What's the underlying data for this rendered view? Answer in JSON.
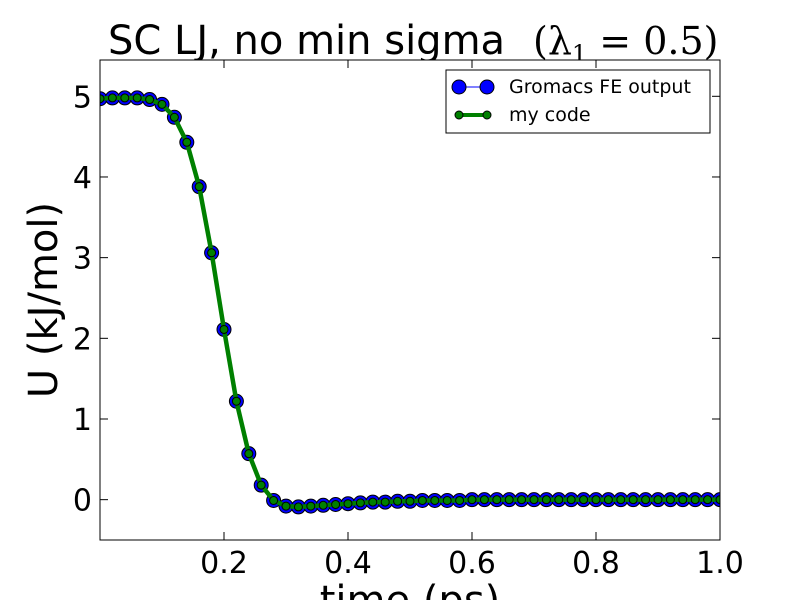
{
  "chart_data": {
    "type": "line",
    "title": "SC LJ, no min sigma",
    "title_math": "(λ",
    "title_math_sub": "1",
    "title_math_rest": " = 0.5)",
    "xlabel": "time (ps)",
    "ylabel": "U (kJ/mol)",
    "xlim": [
      0.0,
      1.0
    ],
    "ylim": [
      -0.5,
      5.45
    ],
    "xticks": [
      0.2,
      0.4,
      0.6,
      0.8,
      1.0
    ],
    "xtick_labels": [
      "0.2",
      "0.4",
      "0.6",
      "0.8",
      "1.0"
    ],
    "yticks": [
      0,
      1,
      2,
      3,
      4,
      5
    ],
    "ytick_labels": [
      "0",
      "1",
      "2",
      "3",
      "4",
      "5"
    ],
    "grid": false,
    "legend_position": "top-right",
    "series": [
      {
        "name": "Gromacs FE output",
        "color": "#0000ff",
        "marker": "circle-large",
        "x": [
          0.0,
          0.02,
          0.04,
          0.06,
          0.08,
          0.1,
          0.12,
          0.14,
          0.16,
          0.18,
          0.2,
          0.22,
          0.24,
          0.26,
          0.28,
          0.3,
          0.32,
          0.34,
          0.36,
          0.38,
          0.4,
          0.42,
          0.44,
          0.46,
          0.48,
          0.5,
          0.52,
          0.54,
          0.56,
          0.58,
          0.6,
          0.62,
          0.64,
          0.66,
          0.68,
          0.7,
          0.72,
          0.74,
          0.76,
          0.78,
          0.8,
          0.82,
          0.84,
          0.86,
          0.88,
          0.9,
          0.92,
          0.94,
          0.96,
          0.98,
          1.0
        ],
        "y": [
          4.97,
          4.98,
          4.98,
          4.98,
          4.96,
          4.9,
          4.74,
          4.43,
          3.88,
          3.06,
          2.11,
          1.22,
          0.57,
          0.18,
          -0.01,
          -0.08,
          -0.09,
          -0.08,
          -0.07,
          -0.06,
          -0.05,
          -0.04,
          -0.03,
          -0.03,
          -0.02,
          -0.02,
          -0.01,
          -0.01,
          -0.01,
          -0.01,
          0.0,
          0.0,
          0.0,
          0.0,
          0.0,
          0.0,
          0.0,
          0.0,
          0.0,
          0.0,
          0.0,
          0.0,
          0.0,
          0.0,
          0.0,
          0.0,
          0.0,
          0.0,
          0.0,
          0.0,
          0.0
        ]
      },
      {
        "name": "my code",
        "color": "#008000",
        "marker": "circle-small",
        "x": [
          0.0,
          0.02,
          0.04,
          0.06,
          0.08,
          0.1,
          0.12,
          0.14,
          0.16,
          0.18,
          0.2,
          0.22,
          0.24,
          0.26,
          0.28,
          0.3,
          0.32,
          0.34,
          0.36,
          0.38,
          0.4,
          0.42,
          0.44,
          0.46,
          0.48,
          0.5,
          0.52,
          0.54,
          0.56,
          0.58,
          0.6,
          0.62,
          0.64,
          0.66,
          0.68,
          0.7,
          0.72,
          0.74,
          0.76,
          0.78,
          0.8,
          0.82,
          0.84,
          0.86,
          0.88,
          0.9,
          0.92,
          0.94,
          0.96,
          0.98,
          1.0
        ],
        "y": [
          4.97,
          4.98,
          4.98,
          4.98,
          4.96,
          4.9,
          4.74,
          4.43,
          3.88,
          3.06,
          2.11,
          1.22,
          0.57,
          0.18,
          -0.01,
          -0.08,
          -0.09,
          -0.08,
          -0.07,
          -0.06,
          -0.05,
          -0.04,
          -0.03,
          -0.03,
          -0.02,
          -0.02,
          -0.01,
          -0.01,
          -0.01,
          -0.01,
          0.0,
          0.0,
          0.0,
          0.0,
          0.0,
          0.0,
          0.0,
          0.0,
          0.0,
          0.0,
          0.0,
          0.0,
          0.0,
          0.0,
          0.0,
          0.0,
          0.0,
          0.0,
          0.0,
          0.0,
          0.0
        ]
      }
    ]
  }
}
